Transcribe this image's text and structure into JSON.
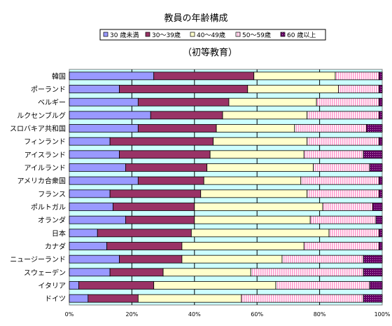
{
  "chart_data": {
    "type": "bar",
    "orientation": "horizontal",
    "stacked": "percent",
    "title": "教員の年齢構成",
    "subtitle": "（初等教育）",
    "xlabel": "",
    "ylabel": "",
    "xlim": [
      0,
      100
    ],
    "x_ticks": [
      "0%",
      "20%",
      "40%",
      "60%",
      "80%",
      "100%"
    ],
    "grid": true,
    "legend_position": "top",
    "categories": [
      "韓国",
      "ポーランド",
      "ベルギー",
      "ルクセンブルグ",
      "スロバキア共和国",
      "フィンランド",
      "アイスランド",
      "アイルランド",
      "アメリカ合衆国",
      "フランス",
      "ポルトガル",
      "オランダ",
      "日本",
      "カナダ",
      "ニュージーランド",
      "スウェーデン",
      "イタリア",
      "ドイツ"
    ],
    "series": [
      {
        "name": "30 歳未満",
        "color": "#9999ff",
        "pattern": "solid",
        "values": [
          27,
          16,
          22,
          26,
          22,
          13,
          16,
          18,
          22,
          13,
          14,
          18,
          9,
          12,
          16,
          13,
          3,
          6
        ]
      },
      {
        "name": "30～39歳",
        "color": "#993366",
        "pattern": "solid",
        "values": [
          32,
          41,
          29,
          23,
          25,
          33,
          29,
          26,
          21,
          29,
          26,
          22,
          30,
          24,
          20,
          17,
          24,
          16
        ]
      },
      {
        "name": "40～49歳",
        "color": "#ffffcc",
        "pattern": "solid",
        "values": [
          26,
          29,
          28,
          27,
          25,
          30,
          30,
          34,
          31,
          34,
          41,
          37,
          44,
          39,
          32,
          28,
          39,
          33
        ]
      },
      {
        "name": "50～59歳",
        "color": "#ff99cc",
        "pattern": "vertical-lines",
        "values": [
          14,
          13,
          20,
          23,
          23,
          23,
          19,
          18,
          25,
          23,
          16,
          21,
          16,
          24,
          26,
          36,
          30,
          39
        ]
      },
      {
        "name": "60 歳以上",
        "color": "#660066",
        "pattern": "dots",
        "values": [
          1,
          1,
          1,
          1,
          5,
          1,
          6,
          4,
          1,
          1,
          3,
          2,
          1,
          1,
          6,
          6,
          4,
          6
        ]
      }
    ]
  }
}
